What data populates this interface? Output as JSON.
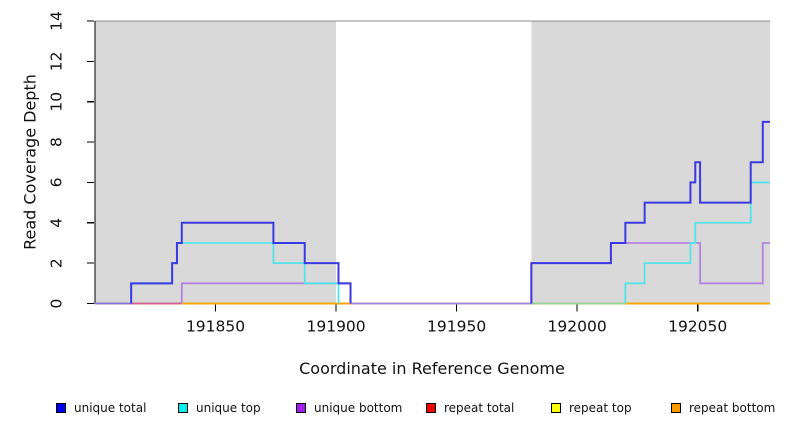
{
  "chart_data": {
    "type": "line",
    "subtype": "step-coverage",
    "title": "",
    "xlabel": "Coordinate in Reference Genome",
    "ylabel": "Read Coverage Depth",
    "xlim": [
      191800,
      192080
    ],
    "ylim": [
      0,
      14
    ],
    "xticks": [
      191850,
      191900,
      191950,
      192000,
      192050
    ],
    "yticks": [
      0,
      2,
      4,
      6,
      8,
      10,
      12,
      14
    ],
    "grid": "off",
    "legend_position": "bottom",
    "plot_background": "#ffffff",
    "shaded_regions": {
      "color": "#d9d9d9",
      "regions": [
        [
          191800,
          191900
        ],
        [
          191981,
          192080
        ]
      ]
    },
    "top_border_color": "#8c8c8c",
    "axis_color": "#000000",
    "series": [
      {
        "label": "unique total",
        "swatch": "#0000ee",
        "line": "#3a3ae0",
        "width": 2,
        "segments": [
          [
            [
              191815,
              0
            ],
            [
              191815,
              1
            ],
            [
              191832,
              1
            ],
            [
              191832,
              2
            ],
            [
              191834,
              2
            ],
            [
              191834,
              3
            ],
            [
              191836,
              3
            ],
            [
              191836,
              4
            ],
            [
              191874,
              4
            ],
            [
              191874,
              3
            ],
            [
              191887,
              3
            ],
            [
              191887,
              2
            ],
            [
              191901,
              2
            ],
            [
              191901,
              1
            ],
            [
              191906,
              1
            ],
            [
              191906,
              0
            ]
          ],
          [
            [
              191981,
              0
            ],
            [
              191981,
              2
            ],
            [
              192014,
              2
            ],
            [
              192014,
              3
            ],
            [
              192020,
              3
            ],
            [
              192020,
              4
            ],
            [
              192028,
              4
            ],
            [
              192028,
              5
            ],
            [
              192047,
              5
            ],
            [
              192047,
              6
            ],
            [
              192049,
              6
            ],
            [
              192049,
              7
            ],
            [
              192051,
              7
            ],
            [
              192051,
              5
            ],
            [
              192072,
              5
            ],
            [
              192072,
              7
            ],
            [
              192077,
              7
            ],
            [
              192077,
              9
            ],
            [
              192080,
              9
            ]
          ]
        ]
      },
      {
        "label": "unique top",
        "swatch": "#00eeee",
        "line": "#55e3ea",
        "width": 1.8,
        "segments": [
          [
            [
              191815,
              0
            ],
            [
              191815,
              1
            ],
            [
              191832,
              1
            ],
            [
              191832,
              2
            ],
            [
              191834,
              2
            ],
            [
              191834,
              3
            ],
            [
              191874,
              3
            ],
            [
              191874,
              2
            ],
            [
              191887,
              2
            ],
            [
              191887,
              1
            ],
            [
              191901,
              1
            ],
            [
              191901,
              0
            ]
          ],
          [
            [
              192020,
              0
            ],
            [
              192020,
              1
            ],
            [
              192028,
              1
            ],
            [
              192028,
              2
            ],
            [
              192047,
              2
            ],
            [
              192047,
              3
            ],
            [
              192049,
              3
            ],
            [
              192049,
              4
            ],
            [
              192072,
              4
            ],
            [
              192072,
              6
            ],
            [
              192080,
              6
            ]
          ]
        ]
      },
      {
        "label": "unique bottom",
        "swatch": "#a020f0",
        "line": "#b284de",
        "width": 1.8,
        "segments": [
          [
            [
              191836,
              0
            ],
            [
              191836,
              1
            ],
            [
              191906,
              1
            ],
            [
              191906,
              0
            ]
          ],
          [
            [
              191981,
              0
            ],
            [
              191981,
              2
            ],
            [
              192014,
              2
            ],
            [
              192014,
              3
            ],
            [
              192051,
              3
            ],
            [
              192051,
              1
            ],
            [
              192077,
              1
            ],
            [
              192077,
              3
            ],
            [
              192080,
              3
            ]
          ]
        ]
      },
      {
        "label": "repeat total",
        "swatch": "#ee0000",
        "line": "#e00000",
        "width": 1.6,
        "segments": [
          [
            [
              191800,
              0
            ],
            [
              192080,
              0
            ]
          ]
        ]
      },
      {
        "label": "repeat top",
        "swatch": "#ffff00",
        "line": "#ffee00",
        "width": 1.6,
        "segments": [
          [
            [
              191800,
              0
            ],
            [
              192080,
              0
            ]
          ]
        ]
      },
      {
        "label": "repeat bottom",
        "swatch": "#ff9800",
        "line": "#ffa500",
        "width": 1.6,
        "segments": [
          [
            [
              191800,
              0
            ],
            [
              192080,
              0
            ]
          ]
        ]
      }
    ],
    "baseline_overdraw_segments": [
      {
        "from": 191800,
        "to": 191815,
        "color": "#7c74e4"
      },
      {
        "from": 191815,
        "to": 191836,
        "color": "#d0609a"
      },
      {
        "from": 191836,
        "to": 191906,
        "color": "#ffa500"
      },
      {
        "from": 191906,
        "to": 191981,
        "color": "#9a86e6"
      },
      {
        "from": 191981,
        "to": 192020,
        "color": "#8fd3a4"
      },
      {
        "from": 192020,
        "to": 192080,
        "color": "#ffa500"
      }
    ]
  },
  "legend": {
    "items": [
      {
        "label": "unique total"
      },
      {
        "label": "unique top"
      },
      {
        "label": "unique bottom"
      },
      {
        "label": "repeat total"
      },
      {
        "label": "repeat top"
      },
      {
        "label": "repeat bottom"
      }
    ]
  }
}
